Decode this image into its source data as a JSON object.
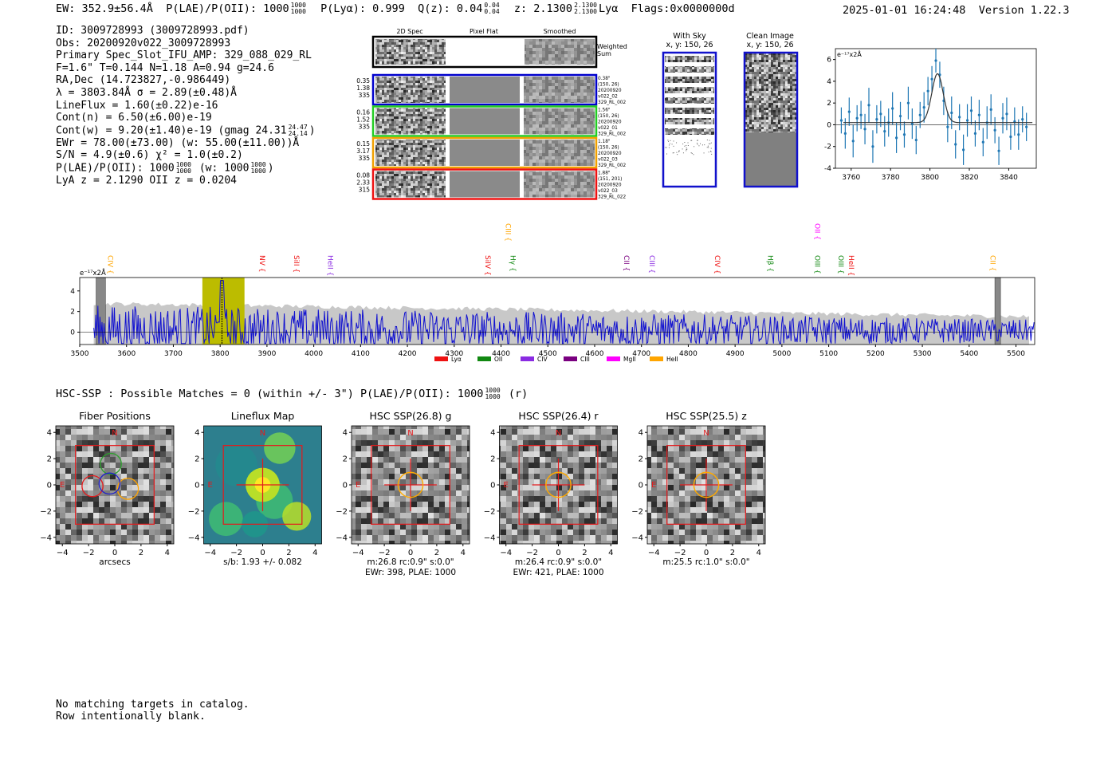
{
  "header": {
    "ew": "EW: 352.9±56.4Å",
    "plae": "P(LAE)/P(OII): 1000",
    "plae_hi": "1000",
    "plae_lo": "1000",
    "plya": "P(Lyα): 0.999",
    "qz": "Q(z): 0.04",
    "qz_hi": "0.04",
    "qz_lo": "0.04",
    "z": "z: 2.1300",
    "z_hi": "2.1300",
    "z_lo": "2.1300",
    "z_line": "Lyα",
    "flags": "Flags:0x0000000d",
    "datetime": "2025-01-01 16:24:48",
    "version": "Version 1.22.3"
  },
  "info": {
    "id": "ID: 3009728993 (3009728993.pdf)",
    "obs": "Obs: 20200920v022_3009728993",
    "primary": "Primary Spec_Slot_IFU_AMP: 329_088_029_RL",
    "fiber": "F=1.6\"  T=0.144  N=1.18  A=0.94  g=24.6",
    "radec": "RA,Dec (14.723827,-0.986449)",
    "lambda": "λ = 3803.84Å  σ = 2.89(±0.48)Å",
    "lineflux": "LineFlux = 1.60(±0.22)e-16",
    "contn": "Cont(n) = 6.50(±6.00)e-19",
    "contw": "Cont(w) = 9.20(±1.40)e-19 (gmag 24.31",
    "gmag_hi": "24.47",
    "gmag_lo": "24.14",
    "contw_end": ")",
    "ewr": "EWr = 78.00(±73.00) (w: 55.00(±11.00))Å",
    "sn": "S/N = 4.9(±0.6)  χ² = 1.0(±0.2)",
    "plae": "P(LAE)/P(OII): 1000",
    "plae_hi": "1000",
    "plae_lo": "1000",
    "plae_w": "(w: 1000",
    "plae_w_hi": "1000",
    "plae_w_lo": "1000",
    "plae_w_end": ")",
    "lyaz": "LyA z = 2.1290  OII z = 0.0204"
  },
  "cutouts": {
    "col_titles": [
      "2D Spec",
      "Pixel Flat",
      "Smoothed"
    ],
    "weighted_label": [
      "Weighted",
      "Sum"
    ],
    "rows": [
      {
        "left": [
          "0.35",
          "1.38",
          "335"
        ],
        "right": [
          "0.38\"",
          "(150, 26)",
          "20200920",
          "v022_02",
          "329_RL_002"
        ],
        "color": "#0000cc"
      },
      {
        "left": [
          "0.16",
          "1.52",
          "335"
        ],
        "right": [
          "1.56\"",
          "(150, 26)",
          "20200920",
          "v022_01",
          "329_RL_002"
        ],
        "color": "#22cc22"
      },
      {
        "left": [
          "0.15",
          "3.17",
          "335"
        ],
        "right": [
          "1.18\"",
          "(150, 26)",
          "20200920",
          "v022_03",
          "329_RL_002"
        ],
        "color": "#f0a000"
      },
      {
        "left": [
          "0.08",
          "2.33",
          "315"
        ],
        "right": [
          "1.88\"",
          "(151, 201)",
          "20200920",
          "v022_03",
          "329_RL_022"
        ],
        "color": "#ee1111"
      }
    ]
  },
  "sky": {
    "with_sky_title": "With Sky",
    "with_sky_sub": "x, y: 150, 26",
    "clean_title": "Clean Image",
    "clean_sub": "x, y: 150, 26"
  },
  "chart_data": [
    {
      "type": "line",
      "name": "zoom-fit",
      "ylabel": "e⁻¹⁷x2Å",
      "xlim": [
        3752,
        3854
      ],
      "ylim": [
        -4,
        7
      ],
      "xticks": [
        3760,
        3780,
        3800,
        3820,
        3840
      ],
      "yticks": [
        -4,
        -2,
        0,
        2,
        4,
        6
      ],
      "gaussian": {
        "center": 3803.84,
        "sigma": 2.89,
        "amp": 4.5,
        "offset": 0.2
      },
      "points_x": [
        3755,
        3757,
        3759,
        3761,
        3763,
        3765,
        3767,
        3769,
        3771,
        3773,
        3775,
        3777,
        3779,
        3781,
        3783,
        3785,
        3787,
        3789,
        3791,
        3793,
        3795,
        3797,
        3799,
        3801,
        3803,
        3805,
        3807,
        3809,
        3811,
        3813,
        3815,
        3817,
        3819,
        3821,
        3823,
        3825,
        3827,
        3829,
        3831,
        3833,
        3835,
        3837,
        3839,
        3841,
        3843,
        3845,
        3847,
        3849
      ],
      "points_y": [
        0.4,
        -0.8,
        1.2,
        -1.5,
        0.6,
        0.9,
        -0.4,
        1.8,
        -2.0,
        0.5,
        1.0,
        -0.6,
        0.2,
        1.5,
        -1.2,
        0.8,
        -0.9,
        2.0,
        0.1,
        -1.4,
        0.9,
        1.6,
        3.1,
        4.2,
        5.9,
        4.6,
        2.2,
        -0.2,
        1.1,
        -1.8,
        0.7,
        -2.3,
        0.4,
        1.3,
        -0.8,
        0.9,
        -1.6,
        0.2,
        1.4,
        -0.5,
        -2.4,
        0.6,
        1.0,
        -1.1,
        0.3,
        -0.9,
        0.5,
        -0.2
      ],
      "errors": [
        1.2,
        1.4,
        1.3,
        1.5,
        1.2,
        1.3,
        1.4,
        1.6,
        1.5,
        1.3,
        1.2,
        1.4,
        1.3,
        1.5,
        1.4,
        1.3,
        1.2,
        1.5,
        1.4,
        1.3,
        1.2,
        1.4,
        1.3,
        1.2,
        1.1,
        1.2,
        1.3,
        1.4,
        1.5,
        1.3,
        1.2,
        1.4,
        1.5,
        1.3,
        1.2,
        1.4,
        1.3,
        1.5,
        1.4,
        1.2,
        1.3,
        1.4,
        1.5,
        1.2,
        1.3,
        1.4,
        1.2,
        1.3
      ]
    },
    {
      "type": "line",
      "name": "full-spectrum",
      "ylabel": "e⁻¹⁷x2Å",
      "xlim": [
        3500,
        5540
      ],
      "ylim": [
        -1.2,
        5.3
      ],
      "xticks": [
        3500,
        3600,
        3700,
        3800,
        3900,
        4000,
        4100,
        4200,
        4300,
        4400,
        4500,
        4600,
        4700,
        4800,
        4900,
        5000,
        5100,
        5200,
        5300,
        5400,
        5500
      ],
      "yticks": [
        0,
        2,
        4
      ],
      "highlight_band": [
        3762,
        3852
      ],
      "emission_line": 3803.84,
      "masked_bands": [
        [
          3535,
          3555
        ],
        [
          5455,
          5467
        ]
      ],
      "legend": [
        {
          "label": "Lyα",
          "color": "#ee1111"
        },
        {
          "label": "OII",
          "color": "#118811"
        },
        {
          "label": "CIV",
          "color": "#8a2be2"
        },
        {
          "label": "CIII",
          "color": "#7a0080"
        },
        {
          "label": "MgII",
          "color": "#ff00ff"
        },
        {
          "label": "HeII",
          "color": "#ffa500"
        }
      ],
      "line_markers": [
        {
          "label": "CIV",
          "wave": 3555,
          "color": "#ffa500",
          "tier": 1
        },
        {
          "label": "NV",
          "wave": 3880,
          "color": "#ee1111",
          "tier": 1
        },
        {
          "label": "SiII",
          "wave": 3953,
          "color": "#ee1111",
          "tier": 1
        },
        {
          "label": "HeII",
          "wave": 4025,
          "color": "#8a2be2",
          "tier": 1
        },
        {
          "label": "CIII",
          "wave": 4405,
          "color": "#ffa500",
          "tier": 0
        },
        {
          "label": "SiIV",
          "wave": 4362,
          "color": "#ee1111",
          "tier": 1
        },
        {
          "label": "Hγ",
          "wave": 4415,
          "color": "#118811",
          "tier": 1
        },
        {
          "label": "CII",
          "wave": 4658,
          "color": "#7a0080",
          "tier": 1
        },
        {
          "label": "CIII",
          "wave": 4712,
          "color": "#8a2be2",
          "tier": 1
        },
        {
          "label": "CIV",
          "wave": 4852,
          "color": "#ee1111",
          "tier": 1
        },
        {
          "label": "Hβ",
          "wave": 4965,
          "color": "#118811",
          "tier": 1
        },
        {
          "label": "OII",
          "wave": 5066,
          "color": "#ff00ff",
          "tier": 0
        },
        {
          "label": "OIII",
          "wave": 5066,
          "color": "#118811",
          "tier": 1
        },
        {
          "label": "OIII",
          "wave": 5116,
          "color": "#118811",
          "tier": 1
        },
        {
          "label": "HeII",
          "wave": 5138,
          "color": "#ee1111",
          "tier": 1
        },
        {
          "label": "CII",
          "wave": 5440,
          "color": "#ffa500",
          "tier": 1
        }
      ]
    }
  ],
  "hsc": {
    "line": "HSC-SSP : Possible Matches = 0 (within +/- 3\")  P(LAE)/P(OII): 1000",
    "frac_hi": "1000",
    "frac_lo": "1000",
    "suffix": "(r)"
  },
  "panels": [
    {
      "title": "Fiber Positions",
      "cap1": "arcsecs",
      "cap2": "",
      "kind": "fiber"
    },
    {
      "title": "Lineflux Map",
      "cap1": "s/b: 1.93 +/- 0.082",
      "cap2": "",
      "kind": "flux"
    },
    {
      "title": "HSC SSP(26.8) g",
      "cap1": "m:26.8 rc:0.9\"  s:0.0\"",
      "cap2": "EWr: 398, PLAE: 1000",
      "kind": "hsc"
    },
    {
      "title": "HSC SSP(26.4) r",
      "cap1": "m:26.4 rc:0.9\"  s:0.0\"",
      "cap2": "EWr: 421, PLAE: 1000",
      "kind": "hsc"
    },
    {
      "title": "HSC SSP(25.5) z",
      "cap1": "m:25.5 rc:1.0\"  s:0.0\"",
      "cap2": "",
      "kind": "hsc"
    }
  ],
  "panel_axis": {
    "ticks": [
      "−4",
      "−2",
      "0",
      "2",
      "4"
    ],
    "north": "N",
    "east": "E"
  },
  "footer": {
    "line1": "No matching targets in catalog.",
    "line2": "Row intentionally blank."
  }
}
